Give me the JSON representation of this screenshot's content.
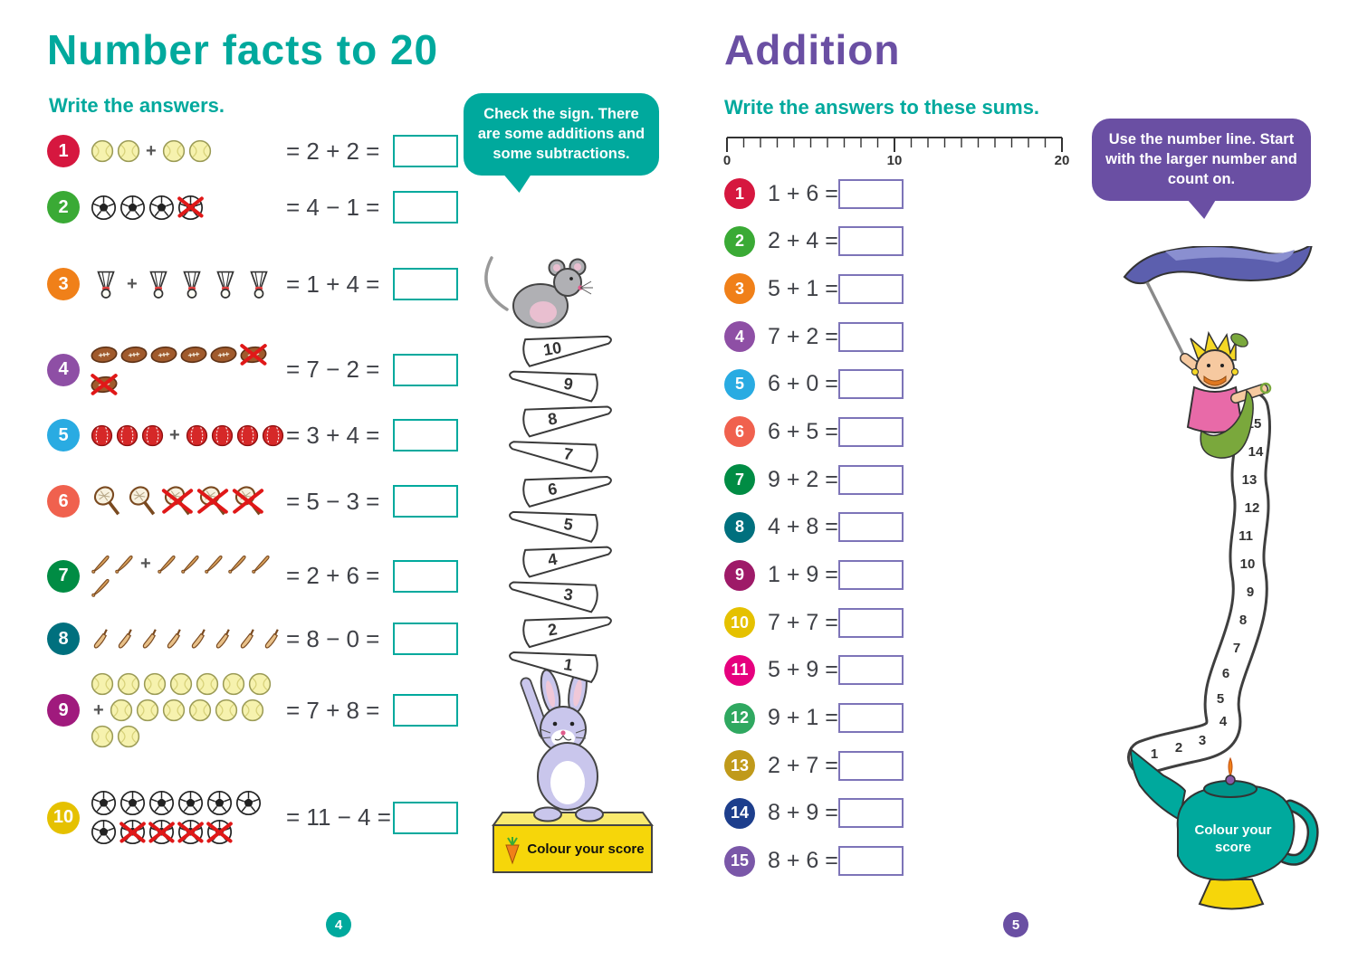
{
  "left_page": {
    "title": "Number facts to 20",
    "instruction": "Write the answers.",
    "speech_bubble": "Check the sign. There are some additions and some subtractions.",
    "problems": [
      {
        "number": "1",
        "color": "#d6173f",
        "icon": "tennis-ball",
        "groups": [
          2,
          2
        ],
        "crossed": 0,
        "equation": "= 2 + 2 ="
      },
      {
        "number": "2",
        "color": "#3aaa35",
        "icon": "soccer-ball",
        "groups": [
          4
        ],
        "crossed": 1,
        "equation": "= 4 − 1 ="
      },
      {
        "number": "3",
        "color": "#f08019",
        "icon": "shuttlecock",
        "groups": [
          1,
          4
        ],
        "crossed": 0,
        "equation": "= 1 + 4 ="
      },
      {
        "number": "4",
        "color": "#8e4fa5",
        "icon": "rugby-ball",
        "groups": [
          7
        ],
        "crossed": 2,
        "equation": "= 7 − 2 ="
      },
      {
        "number": "5",
        "color": "#29abe2",
        "icon": "cricket-ball",
        "groups": [
          3,
          4
        ],
        "crossed": 0,
        "equation": "= 3 + 4 ="
      },
      {
        "number": "6",
        "color": "#f0614e",
        "icon": "tennis-racket",
        "groups": [
          5
        ],
        "crossed": 3,
        "equation": "= 5 − 3 ="
      },
      {
        "number": "7",
        "color": "#008c44",
        "icon": "baseball-bat",
        "groups": [
          2,
          6
        ],
        "crossed": 0,
        "equation": "= 2 + 6 ="
      },
      {
        "number": "8",
        "color": "#00707e",
        "icon": "cricket-bat",
        "groups": [
          8
        ],
        "crossed": 0,
        "equation": "= 8 − 0 ="
      },
      {
        "number": "9",
        "color": "#a01a7d",
        "icon": "tennis-ball",
        "groups": [
          7,
          8
        ],
        "crossed": 0,
        "equation": "= 7 + 8 ="
      },
      {
        "number": "10",
        "color": "#e5c100",
        "icon": "soccer-ball",
        "groups": [
          11
        ],
        "crossed": 4,
        "equation": "= 11 − 4 ="
      }
    ],
    "score_ladder": [
      "10",
      "9",
      "8",
      "7",
      "6",
      "5",
      "4",
      "3",
      "2",
      "1"
    ],
    "score_label": "Colour your score",
    "page_number": "4"
  },
  "right_page": {
    "title": "Addition",
    "instruction": "Write the answers to these sums.",
    "number_line": {
      "start": "0",
      "mid": "10",
      "end": "20"
    },
    "speech_bubble": "Use the number line. Start with the larger number and count on.",
    "problems": [
      {
        "number": "1",
        "color": "#d6173f",
        "sum": "1 + 6 ="
      },
      {
        "number": "2",
        "color": "#3aaa35",
        "sum": "2 + 4 ="
      },
      {
        "number": "3",
        "color": "#f08019",
        "sum": "5 + 1 ="
      },
      {
        "number": "4",
        "color": "#8e4fa5",
        "sum": "7 + 2 ="
      },
      {
        "number": "5",
        "color": "#29abe2",
        "sum": "6 + 0 ="
      },
      {
        "number": "6",
        "color": "#f0614e",
        "sum": "6 + 5 ="
      },
      {
        "number": "7",
        "color": "#008c44",
        "sum": "9 + 2 ="
      },
      {
        "number": "8",
        "color": "#00707e",
        "sum": "4 + 8 ="
      },
      {
        "number": "9",
        "color": "#9e1a68",
        "sum": "1 + 9 ="
      },
      {
        "number": "10",
        "color": "#e5c100",
        "sum": "7 + 7 ="
      },
      {
        "number": "11",
        "color": "#e6007e",
        "sum": "5 + 9 ="
      },
      {
        "number": "12",
        "color": "#2fa860",
        "sum": "9 + 1 ="
      },
      {
        "number": "13",
        "color": "#c09a1a",
        "sum": "2 + 7 ="
      },
      {
        "number": "14",
        "color": "#1d3e8c",
        "sum": "8 + 9 ="
      },
      {
        "number": "15",
        "color": "#7a57a8",
        "sum": "8 + 6 ="
      }
    ],
    "score_trail": [
      "15",
      "14",
      "13",
      "12",
      "11",
      "10",
      "9",
      "8",
      "7",
      "6",
      "5",
      "4",
      "3",
      "2",
      "1"
    ],
    "score_label_lines": [
      "Colour your",
      "score"
    ],
    "page_number": "5"
  }
}
